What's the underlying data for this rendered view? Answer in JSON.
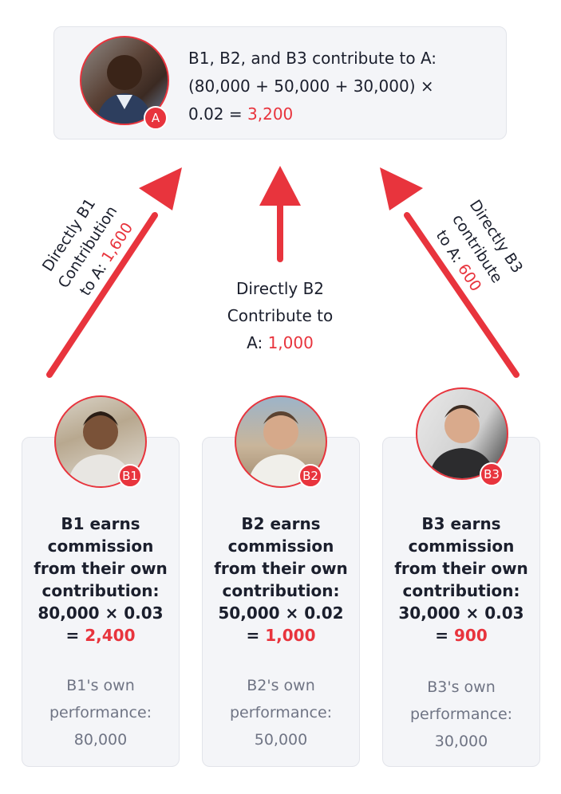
{
  "top": {
    "badge": "A",
    "line1": "B1, B2, and B3 contribute to A:",
    "line2": "(80,000 + 50,000 + 30,000) ×",
    "line3_prefix": "0.02 = ",
    "line3_value": "3,200"
  },
  "labels": {
    "b1": {
      "line1": "Directly B1",
      "line2": "Contribution",
      "line3_prefix": "to A: ",
      "line3_value": "1,600"
    },
    "b2": {
      "line1": "Directly B2",
      "line2": "Contribute to",
      "line3_prefix": "A: ",
      "line3_value": "1,000"
    },
    "b3": {
      "line1": "Directly B3",
      "line2": "contribute",
      "line3_prefix": "to A: ",
      "line3_value": "600"
    }
  },
  "members": [
    {
      "badge": "B1",
      "lines": [
        "B1 earns",
        "commission",
        "from their own",
        "contribution:",
        "80,000 × 0.03"
      ],
      "result_prefix": "= ",
      "result_value": "2,400",
      "perf": [
        "B1's own",
        "performance:",
        "80,000"
      ]
    },
    {
      "badge": "B2",
      "lines": [
        "B2 earns",
        "commission",
        "from their own",
        "contribution:",
        "50,000 × 0.02"
      ],
      "result_prefix": "= ",
      "result_value": "1,000",
      "perf": [
        "B2's own",
        "performance:",
        "50,000"
      ]
    },
    {
      "badge": "B3",
      "lines": [
        "B3 earns",
        "commission",
        "from their own",
        "contribution:",
        "30,000 × 0.03"
      ],
      "result_prefix": "= ",
      "result_value": "900",
      "perf": [
        "B3's own",
        "performance:",
        "30,000"
      ]
    }
  ],
  "colors": {
    "accent": "#e8343d",
    "card_bg": "#f4f5f8",
    "text": "#1b1f2d",
    "muted": "#6f7484"
  }
}
